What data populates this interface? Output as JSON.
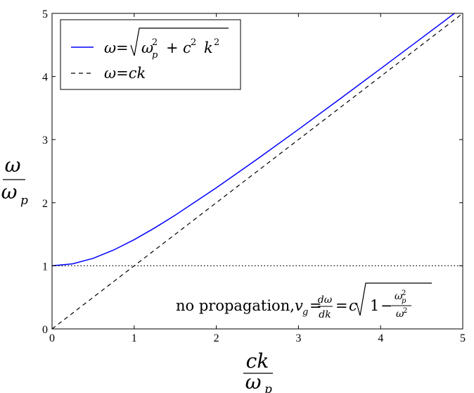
{
  "chart_data": {
    "type": "line",
    "x_tick_labels": [
      "0",
      "1",
      "2",
      "3",
      "4",
      "5"
    ],
    "y_tick_labels": [
      "0",
      "1",
      "2",
      "3",
      "4",
      "5"
    ],
    "xlim": [
      0,
      5
    ],
    "ylim": [
      0,
      5
    ],
    "grid": false,
    "legend_position": "top-left",
    "series": [
      {
        "name": "ω=√(ωp² + c² k²)",
        "color": "#0000ff",
        "style": "solid",
        "x": [
          0,
          0.25,
          0.5,
          0.75,
          1,
          1.25,
          1.5,
          2,
          2.5,
          3,
          3.5,
          4,
          4.5,
          4.9
        ],
        "y": [
          1,
          1.031,
          1.118,
          1.25,
          1.414,
          1.601,
          1.803,
          2.236,
          2.693,
          3.162,
          3.64,
          4.123,
          4.61,
          5.001
        ]
      },
      {
        "name": "ω=ck",
        "color": "#000000",
        "style": "dashed",
        "x": [
          0,
          5
        ],
        "y": [
          0,
          5
        ]
      },
      {
        "name": "",
        "color": "#000000",
        "style": "dotted",
        "x": [
          0,
          5
        ],
        "y": [
          1,
          1
        ]
      }
    ],
    "annotation": {
      "prefix": "no propagation, ",
      "v": "v",
      "g": "g",
      "eq1": "=",
      "dw": "dω",
      "dk": "dk",
      "eq2": "=",
      "c": "c",
      "one": "1",
      "minus": "−",
      "wp": "ω",
      "p": "p",
      "two": "2",
      "w2": "ω",
      "two2": "2"
    },
    "ylabel": {
      "numerator": "ω",
      "denominator": "ω",
      "denominator_sub": "p"
    },
    "xlabel": {
      "numerator": "ck",
      "denominator": "ω",
      "denominator_sub": "p"
    },
    "legend_math": {
      "s1_omega": "ω",
      "s1_eq": "=",
      "s1_wp": "ω",
      "s1_p": "p",
      "s1_two": "2",
      "s1_plus": "+",
      "s1_c": "c",
      "s1_two_b": "2",
      "s1_k": "k",
      "s1_two_c": "2",
      "s2_text": "ω=ck"
    }
  }
}
